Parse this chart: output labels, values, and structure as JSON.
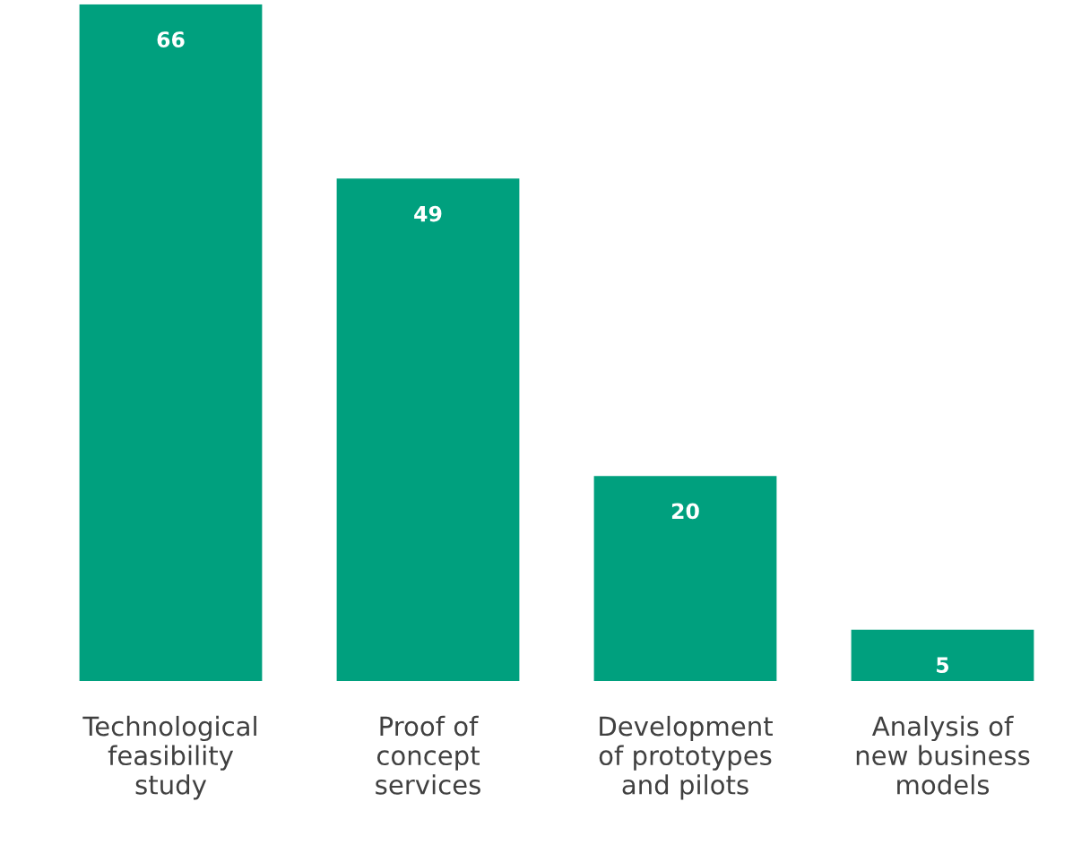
{
  "chart_data": {
    "type": "bar",
    "categories": [
      "Technological\nfeasibility\nstudy",
      "Proof of\nconcept\nservices",
      "Development\nof prototypes\nand pilots",
      "Analysis of\nnew business\nmodels"
    ],
    "values": [
      66,
      49,
      20,
      5
    ],
    "color": "#00a07e",
    "data_labels": true,
    "grid": false,
    "legend": false
  }
}
